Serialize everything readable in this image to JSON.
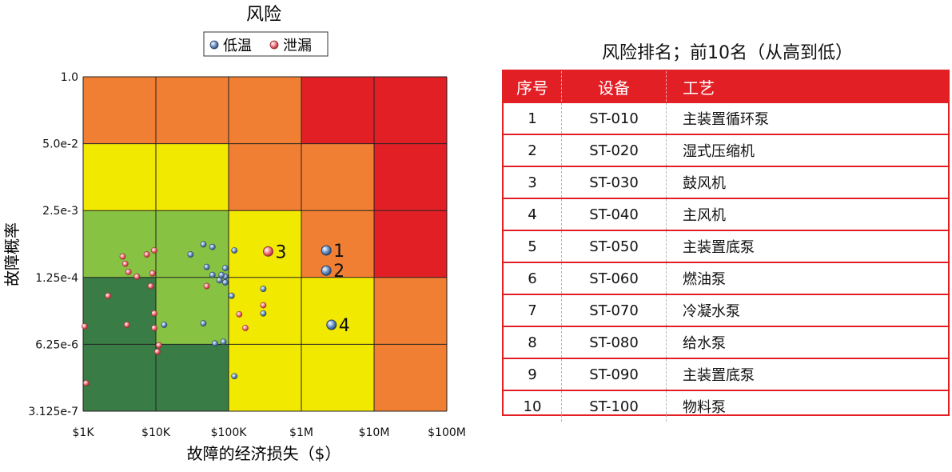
{
  "chart_data": {
    "type": "scatter",
    "title": "风险",
    "xlabel": "故障的经济损失（$）",
    "ylabel": "故障概率",
    "x_scale": "log",
    "y_scale": "log",
    "xlim": [
      1000,
      100000000
    ],
    "ylim": [
      3.125e-07,
      1.0
    ],
    "x_ticks": [
      "$1K",
      "$10K",
      "$100K",
      "$1M",
      "$10M",
      "$100M"
    ],
    "y_ticks": [
      "1.0",
      "5.0e-2",
      "2.5e-3",
      "1.25e-4",
      "6.25e-6",
      "3.125e-7"
    ],
    "legend_position": "top-center",
    "risk_colors": {
      "dark_green": "#3a7c45",
      "light_green": "#87c242",
      "yellow": "#f2e900",
      "orange": "#f07f33",
      "red": "#e31f26"
    },
    "risk_grid": [
      [
        "orange",
        "orange",
        "orange",
        "red",
        "red"
      ],
      [
        "yellow",
        "yellow",
        "orange",
        "orange",
        "red"
      ],
      [
        "light_green",
        "light_green",
        "yellow",
        "orange",
        "red"
      ],
      [
        "dark_green",
        "light_green",
        "yellow",
        "yellow",
        "orange"
      ],
      [
        "dark_green",
        "dark_green",
        "yellow",
        "yellow",
        "orange"
      ]
    ],
    "series": [
      {
        "name": "低温",
        "color": "#5b8cc4",
        "points": [
          [
            60000,
            0.00049
          ],
          [
            50000,
            0.0002
          ],
          [
            30000,
            0.00035
          ],
          [
            45000,
            0.00055
          ],
          [
            60000,
            0.00014
          ],
          [
            75000,
            0.00011
          ],
          [
            90000,
            0.00019
          ],
          [
            90000,
            0.00013
          ],
          [
            80000,
            0.00014
          ],
          [
            90000,
            0.0001
          ],
          [
            120000,
            0.00042
          ],
          [
            110000,
            5.5e-05
          ],
          [
            300000,
            7.5e-05
          ],
          [
            300000,
            2.5e-05
          ],
          [
            45000,
            1.6e-05
          ],
          [
            13000,
            1.5e-05
          ],
          [
            85000,
            7e-06
          ],
          [
            65000,
            6.5e-06
          ],
          [
            120000,
            1.5e-06
          ]
        ]
      },
      {
        "name": "泄漏",
        "color": "#ef6b73",
        "points": [
          [
            3500,
            0.00032
          ],
          [
            5500,
            0.00013
          ],
          [
            4200,
            0.00016
          ],
          [
            7500,
            0.00035
          ],
          [
            3800,
            0.00023
          ],
          [
            9500,
            0.00042
          ],
          [
            9000,
            0.00015
          ],
          [
            8500,
            8.5e-05
          ],
          [
            2200,
            5.5e-05
          ],
          [
            4000,
            1.5e-05
          ],
          [
            9500,
            2.5e-05
          ],
          [
            1050,
            1.4e-05
          ],
          [
            9500,
            1.3e-05
          ],
          [
            11000,
            6e-06
          ],
          [
            10500,
            4.5e-06
          ],
          [
            50000,
            8.5e-05
          ],
          [
            140000,
            2.4e-05
          ],
          [
            170000,
            1.3e-05
          ],
          [
            300000,
            3.6e-05
          ],
          [
            1100,
            1.1e-06
          ]
        ]
      }
    ],
    "highlighted": [
      {
        "rank": "1",
        "x": 2200000,
        "y": 0.00042,
        "series": "低温"
      },
      {
        "rank": "2",
        "x": 2200000,
        "y": 0.00017,
        "series": "低温"
      },
      {
        "rank": "3",
        "x": 350000,
        "y": 0.0004,
        "series": "泄漏"
      },
      {
        "rank": "4",
        "x": 2600000,
        "y": 1.5e-05,
        "series": "低温"
      }
    ]
  },
  "ranking": {
    "title": "风险排名；前10名（从高到低）",
    "headers": [
      "序号",
      "设备",
      "工艺"
    ],
    "rows": [
      [
        "1",
        "ST-010",
        "主装置循环泵"
      ],
      [
        "2",
        "ST-020",
        "湿式压缩机"
      ],
      [
        "3",
        "ST-030",
        "鼓风机"
      ],
      [
        "4",
        "ST-040",
        "主风机"
      ],
      [
        "5",
        "ST-050",
        "主装置底泵"
      ],
      [
        "6",
        "ST-060",
        "燃油泵"
      ],
      [
        "7",
        "ST-070",
        "冷凝水泵"
      ],
      [
        "8",
        "ST-080",
        "给水泵"
      ],
      [
        "9",
        "ST-090",
        "主装置底泵"
      ],
      [
        "10",
        "ST-100",
        "物料泵"
      ]
    ]
  }
}
